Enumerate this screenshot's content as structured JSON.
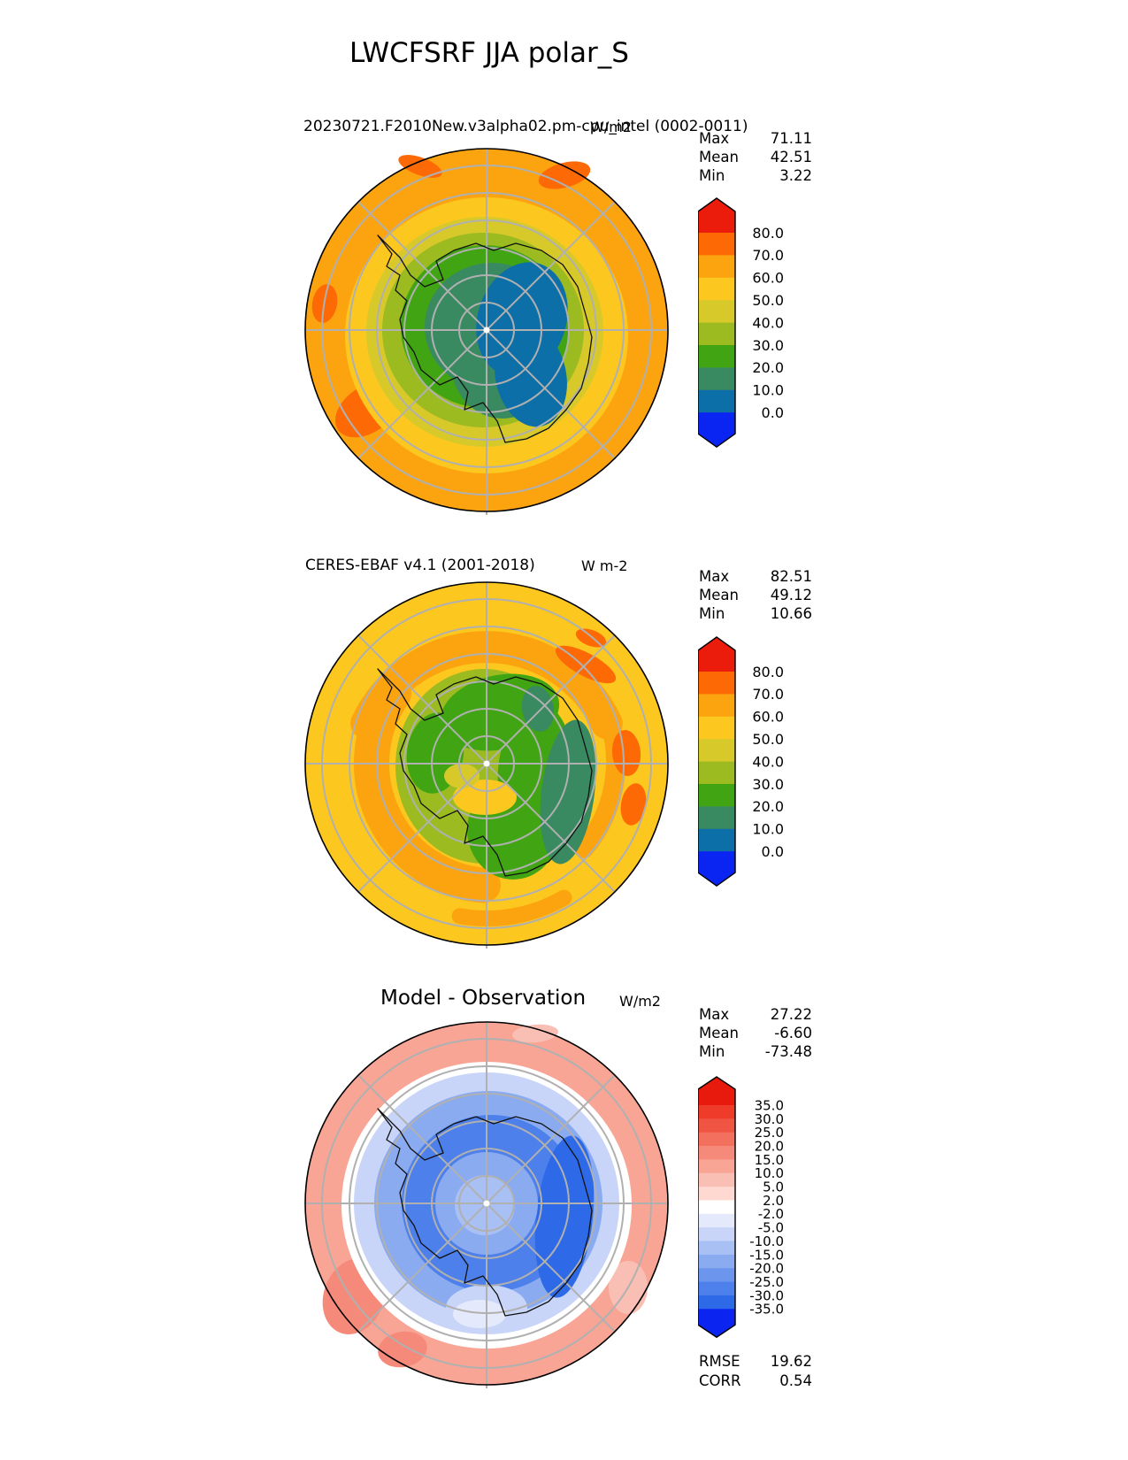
{
  "chart_data": {
    "type": "heatmap",
    "figure_title": "LWCFSRF JJA polar_S",
    "variable": "LWCFSRF",
    "season": "JJA",
    "projection": "polar_S south polar stereographic, Antarctica coastline, 8 meridian rays, 6 latitude circles",
    "stat_labels": {
      "max": "Max",
      "mean": "Mean",
      "min": "Min",
      "rmse": "RMSE",
      "corr": "CORR"
    },
    "panels": [
      {
        "id": "model",
        "title": "20230721.F2010New.v3alpha02.pm-cpu_intel (0002-0011)",
        "units": "W/m2",
        "stats": {
          "max": "71.11",
          "mean": "42.51",
          "min": "3.22"
        },
        "colorbar": {
          "orientation": "vertical",
          "extend": "both",
          "ticks": [
            "80.0",
            "70.0",
            "60.0",
            "50.0",
            "40.0",
            "30.0",
            "20.0",
            "10.0",
            "0.0"
          ],
          "colors": [
            "#eb1c0c",
            "#fd6a05",
            "#fca40f",
            "#fcc71f",
            "#d8c92b",
            "#9bbb20",
            "#41a513",
            "#398a61",
            "#0d6fa7",
            "#0a24f2"
          ]
        },
        "map_description": "orange 60-70 ring outside, golden and mustard bands, green interior over Antarctica, blue 0-10 minimum east of the pole"
      },
      {
        "id": "observation",
        "title": "CERES-EBAF v4.1 (2001-2018)",
        "units": "W m-2",
        "stats": {
          "max": "82.51",
          "mean": "49.12",
          "min": "10.66"
        },
        "colorbar": {
          "orientation": "vertical",
          "extend": "both",
          "ticks": [
            "80.0",
            "70.0",
            "60.0",
            "50.0",
            "40.0",
            "30.0",
            "20.0",
            "10.0",
            "0.0"
          ],
          "colors": [
            "#eb1c0c",
            "#fd6a05",
            "#fca40f",
            "#fcc71f",
            "#d8c92b",
            "#9bbb20",
            "#41a513",
            "#398a61",
            "#0d6fa7",
            "#0a24f2"
          ]
        },
        "map_description": "golden 50-60 background with orange 60-70 spiral bands, green patches and dark sea-green band over East Antarctica"
      },
      {
        "id": "difference",
        "title": "Model - Observation",
        "units": "W/m2",
        "stats": {
          "max": "27.22",
          "mean": "-6.60",
          "min": "-73.48"
        },
        "metrics": {
          "rmse": "19.62",
          "corr": "0.54"
        },
        "colorbar": {
          "orientation": "vertical",
          "extend": "both",
          "ticks": [
            "35.0",
            "30.0",
            "25.0",
            "20.0",
            "15.0",
            "10.0",
            "5.0",
            "2.0",
            "-2.0",
            "-5.0",
            "-10.0",
            "-15.0",
            "-20.0",
            "-25.0",
            "-30.0",
            "-35.0"
          ],
          "colors": [
            "#e8190d",
            "#ee3b2a",
            "#f05544",
            "#f3705f",
            "#f58a7a",
            "#f8a596",
            "#fabfb4",
            "#fdd9d2",
            "#ffffff",
            "#e4eafb",
            "#c8d5f8",
            "#a9c0f5",
            "#8babf1",
            "#6c95ee",
            "#4d80ea",
            "#2e6ae7",
            "#0b24f0"
          ]
        },
        "map_description": "salmon positive ring at edge, white transition ring, broad negative blue interior with darkest blue ring around the pole"
      }
    ]
  }
}
